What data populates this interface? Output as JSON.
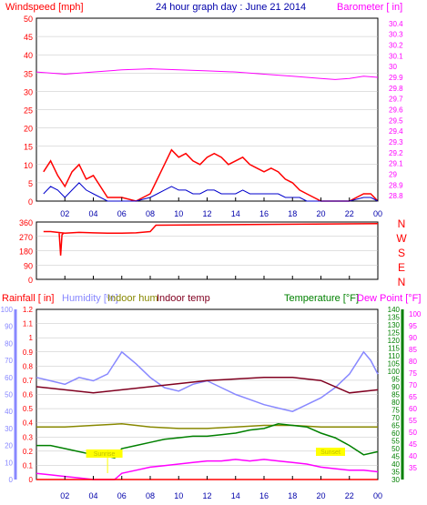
{
  "title": "24 hour graph day : June 21 2014",
  "colors": {
    "windspeed": "#ff0000",
    "windgust_avg": "#0000cc",
    "barometer": "#ff00ff",
    "direction": "#ff0000",
    "rainfall": "#ff0000",
    "humidity": "#8888ff",
    "indoor_hum": "#888800",
    "indoor_temp": "#800020",
    "temperature": "#008000",
    "dew_point": "#ff00ff",
    "grid": "#c0c0c0",
    "label_fill": "#ffff00"
  },
  "x_ticks": [
    "02",
    "04",
    "06",
    "08",
    "10",
    "12",
    "14",
    "16",
    "18",
    "20",
    "22",
    "00"
  ],
  "chart_data": [
    {
      "type": "line",
      "title": "24 hour graph day : June 21 2014",
      "left_axis": {
        "label": "Windspeed [mph]",
        "ticks": [
          0,
          5,
          10,
          15,
          20,
          25,
          30,
          35,
          40,
          45,
          50
        ],
        "range": [
          0,
          50
        ]
      },
      "right_axis": {
        "label": "Barometer [ in]",
        "ticks": [
          28.8,
          28.9,
          29.0,
          29.1,
          29.2,
          29.3,
          29.4,
          29.5,
          29.6,
          29.7,
          29.8,
          29.9,
          30.0,
          30.1,
          30.2,
          30.3,
          30.4
        ],
        "tick_labels": [
          "28.8",
          "28.9",
          "29",
          "29.1",
          "29.2",
          "29.3",
          "29.4",
          "29.5",
          "29.6",
          "29.7",
          "29.8",
          "29.9",
          "30",
          "30.1",
          "30.2",
          "30.3",
          "30.4"
        ],
        "range": [
          28.75,
          30.45
        ]
      },
      "x_range_hours": [
        0,
        24
      ],
      "series": [
        {
          "key": "windspeed",
          "x": [
            0.5,
            1.0,
            1.5,
            2.0,
            2.5,
            3.0,
            3.5,
            4.0,
            5.0,
            6.0,
            7.0,
            8.0,
            8.5,
            9.0,
            9.5,
            10.0,
            10.5,
            11.0,
            11.5,
            12.0,
            12.5,
            13.0,
            13.5,
            14.0,
            14.5,
            15.0,
            15.5,
            16.0,
            16.5,
            17.0,
            17.5,
            18.0,
            18.5,
            19.0,
            19.5,
            20.0,
            21.0,
            22.0,
            23.0,
            23.5,
            24.0
          ],
          "y": [
            8,
            11,
            7,
            4,
            8,
            10,
            6,
            7,
            1,
            1,
            0,
            2,
            6,
            10,
            14,
            12,
            13,
            11,
            10,
            12,
            13,
            12,
            10,
            11,
            12,
            10,
            9,
            8,
            9,
            8,
            6,
            5,
            3,
            2,
            1,
            0,
            0,
            0,
            2,
            2,
            0
          ]
        },
        {
          "key": "windgust_avg",
          "x": [
            0.5,
            1.0,
            1.5,
            2.0,
            2.5,
            3.0,
            3.5,
            4.0,
            5.0,
            6.0,
            7.0,
            8.0,
            8.5,
            9.0,
            9.5,
            10.0,
            10.5,
            11.0,
            11.5,
            12.0,
            12.5,
            13.0,
            13.5,
            14.0,
            14.5,
            15.0,
            15.5,
            16.0,
            16.5,
            17.0,
            17.5,
            18.0,
            18.5,
            19.0,
            19.5,
            20.0,
            21.0,
            22.0,
            23.0,
            23.5,
            24.0
          ],
          "y": [
            2,
            4,
            3,
            1,
            3,
            5,
            3,
            2,
            0,
            0,
            0,
            1,
            2,
            3,
            4,
            3,
            3,
            2,
            2,
            3,
            3,
            2,
            2,
            2,
            3,
            2,
            2,
            2,
            2,
            2,
            1,
            1,
            1,
            0,
            0,
            0,
            0,
            0,
            1,
            1,
            0
          ]
        },
        {
          "key": "barometer",
          "axis": "right",
          "x": [
            0,
            2,
            4,
            6,
            8,
            10,
            12,
            14,
            16,
            18,
            20,
            21,
            22,
            23,
            24
          ],
          "y": [
            29.95,
            29.93,
            29.95,
            29.97,
            29.98,
            29.97,
            29.96,
            29.95,
            29.93,
            29.91,
            29.89,
            29.88,
            29.89,
            29.91,
            29.9
          ]
        }
      ]
    },
    {
      "type": "line",
      "title": "",
      "left_axis": {
        "ticks": [
          0,
          90,
          180,
          270,
          360
        ],
        "range": [
          0,
          360
        ]
      },
      "right_axis": {
        "labels": [
          "N",
          "W",
          "S",
          "E",
          "N"
        ]
      },
      "x_range_hours": [
        0,
        24
      ],
      "series": [
        {
          "key": "direction",
          "x": [
            0.5,
            1.0,
            1.5,
            2.0,
            3.0,
            4.0,
            5.0,
            6.0,
            7.0,
            8.0,
            8.4,
            24.0
          ],
          "y": [
            300,
            300,
            295,
            290,
            295,
            292,
            290,
            290,
            292,
            300,
            340,
            350
          ]
        },
        {
          "key": "direction_spike",
          "x": [
            1.6,
            1.7,
            1.8,
            1.9
          ],
          "y": [
            290,
            150,
            280,
            290
          ]
        }
      ]
    },
    {
      "type": "line",
      "title": "",
      "left_axes": [
        {
          "label": "Rainfall [ in]",
          "ticks": [
            0,
            0.1,
            0.2,
            0.3,
            0.4,
            0.5,
            0.6,
            0.7,
            0.8,
            0.9,
            1.0,
            1.1,
            1.2
          ],
          "tick_labels": [
            "0",
            "0.1",
            "0.2",
            "0.3",
            "0.4",
            "0.5",
            "0.6",
            "0.7",
            "0.8",
            "0.9",
            "1",
            "1.1",
            "1.2"
          ]
        },
        {
          "label": "Humidity [%]",
          "ticks": [
            0,
            10,
            20,
            30,
            40,
            50,
            60,
            70,
            80,
            90,
            100
          ]
        }
      ],
      "top_labels": [
        "Rainfall [ in]",
        "Humidity [%]",
        "Indoor hum",
        "Indoor temp",
        "Temperature [°F]",
        "Dew Point [°F]"
      ],
      "right_axes": [
        {
          "label": "Temperature [°F]",
          "ticks": [
            30,
            35,
            40,
            45,
            50,
            55,
            60,
            65,
            70,
            75,
            80,
            85,
            90,
            95,
            100,
            105,
            110,
            115,
            120,
            125,
            130,
            135,
            140
          ]
        },
        {
          "label": "Dew Point [°F]",
          "ticks": [
            35,
            40,
            45,
            50,
            55,
            60,
            65,
            70,
            75,
            80,
            85,
            90,
            95,
            100
          ]
        }
      ],
      "annotations": [
        "Sunrise",
        "Sunset"
      ],
      "x_range_hours": [
        0,
        24
      ],
      "series": [
        {
          "key": "humidity",
          "x": [
            0,
            1,
            2,
            3,
            4,
            5,
            6,
            7,
            8,
            9,
            10,
            11,
            12,
            13,
            14,
            15,
            16,
            17,
            18,
            19,
            20,
            21,
            22,
            23,
            23.5,
            24
          ],
          "y": [
            60,
            58,
            56,
            60,
            58,
            62,
            75,
            68,
            60,
            54,
            52,
            56,
            58,
            54,
            50,
            47,
            44,
            42,
            40,
            44,
            48,
            54,
            62,
            75,
            70,
            62
          ]
        },
        {
          "key": "indoor_temp",
          "x": [
            0,
            2,
            4,
            6,
            8,
            10,
            12,
            14,
            16,
            18,
            20,
            22,
            24
          ],
          "y": [
            90,
            88,
            86,
            88,
            90,
            92,
            94,
            95,
            96,
            96,
            94,
            86,
            88
          ]
        },
        {
          "key": "indoor_hum",
          "x": [
            0,
            2,
            4,
            6,
            8,
            10,
            12,
            14,
            16,
            18,
            20,
            22,
            24
          ],
          "y": [
            64,
            64,
            65,
            66,
            64,
            63,
            63,
            64,
            65,
            65,
            64,
            64,
            64
          ]
        },
        {
          "key": "temperature",
          "x": [
            0,
            1,
            2,
            3,
            4,
            5,
            5.5,
            6,
            7,
            8,
            9,
            10,
            11,
            12,
            13,
            14,
            15,
            16,
            17,
            18,
            19,
            20,
            21,
            22,
            23,
            24
          ],
          "y": [
            52,
            52,
            50,
            48,
            46,
            45,
            44,
            50,
            52,
            54,
            56,
            57,
            58,
            58,
            59,
            60,
            62,
            63,
            66,
            65,
            64,
            60,
            57,
            52,
            46,
            48
          ]
        },
        {
          "key": "dew_point",
          "x": [
            0,
            1,
            2,
            3,
            4,
            5,
            5.5,
            6,
            7,
            8,
            9,
            10,
            11,
            12,
            13,
            14,
            15,
            16,
            17,
            18,
            19,
            20,
            21,
            22,
            23,
            24
          ],
          "y": [
            34,
            33,
            32,
            31,
            30,
            30,
            30,
            34,
            36,
            38,
            39,
            40,
            41,
            42,
            42,
            43,
            42,
            43,
            42,
            41,
            40,
            38,
            37,
            36,
            36,
            35
          ]
        },
        {
          "key": "rainfall",
          "x": [
            0,
            24
          ],
          "y": [
            0,
            0
          ]
        }
      ]
    }
  ]
}
